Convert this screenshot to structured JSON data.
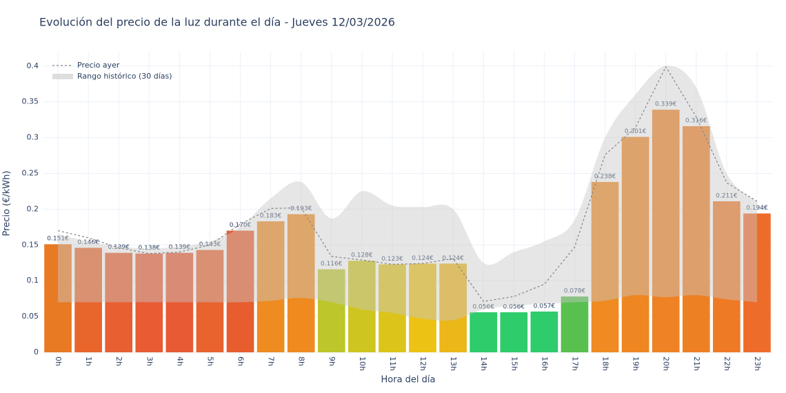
{
  "chart_data": {
    "type": "bar",
    "title": "Evolución del precio de la luz durante el día - Jueves 12/03/2026",
    "xlabel": "Hora del día",
    "ylabel": "Precio (€/kWh)",
    "categories": [
      "0h",
      "1h",
      "2h",
      "3h",
      "4h",
      "5h",
      "6h",
      "7h",
      "8h",
      "9h",
      "10h",
      "11h",
      "12h",
      "13h",
      "14h",
      "15h",
      "16h",
      "17h",
      "18h",
      "19h",
      "20h",
      "21h",
      "22h",
      "23h"
    ],
    "values": [
      0.151,
      0.146,
      0.139,
      0.138,
      0.139,
      0.143,
      0.17,
      0.183,
      0.193,
      0.116,
      0.128,
      0.123,
      0.124,
      0.124,
      0.056,
      0.056,
      0.057,
      0.078,
      0.238,
      0.301,
      0.339,
      0.316,
      0.211,
      0.194
    ],
    "value_labels": [
      "0.151€",
      "0.146€",
      "0.139€",
      "0.138€",
      "0.139€",
      "0.143€",
      "0.170€",
      "0.183€",
      "0.193€",
      "0.116€",
      "0.128€",
      "0.123€",
      "0.124€",
      "0.124€",
      "0.056€",
      "0.056€",
      "0.057€",
      "0.078€",
      "0.238€",
      "0.301€",
      "0.339€",
      "0.316€",
      "0.211€",
      "0.194€"
    ],
    "colors": [
      "#e97a24",
      "#e8652c",
      "#e85f31",
      "#e85b33",
      "#e85a33",
      "#e8632e",
      "#e85d2e",
      "#ee8b21",
      "#ef8a20",
      "#bdc62a",
      "#cfc520",
      "#dcc41a",
      "#ecc214",
      "#ebb719",
      "#2ecc6b",
      "#2ecc6b",
      "#2ecc6b",
      "#58c04f",
      "#ef8b22",
      "#ee8622",
      "#ee8224",
      "#ee8024",
      "#ef7a26",
      "#ee6c2a"
    ],
    "yesterday": {
      "name": "Precio ayer",
      "color": "#8a8a8a",
      "values": [
        0.17,
        0.16,
        0.146,
        0.138,
        0.14,
        0.15,
        0.179,
        0.201,
        0.202,
        0.134,
        0.129,
        0.123,
        0.124,
        0.131,
        0.071,
        0.078,
        0.095,
        0.147,
        0.276,
        0.314,
        0.399,
        0.329,
        0.237,
        0.211
      ]
    },
    "range": {
      "name": "Rango histórico (30 días)",
      "color": "#c8c8c8",
      "upper": [
        0.165,
        0.155,
        0.148,
        0.145,
        0.148,
        0.155,
        0.175,
        0.215,
        0.238,
        0.187,
        0.225,
        0.205,
        0.203,
        0.2,
        0.125,
        0.14,
        0.155,
        0.185,
        0.3,
        0.36,
        0.4,
        0.37,
        0.25,
        0.21
      ],
      "lower": [
        0.07,
        0.07,
        0.07,
        0.07,
        0.07,
        0.07,
        0.07,
        0.072,
        0.076,
        0.07,
        0.06,
        0.055,
        0.047,
        0.045,
        0.06,
        0.065,
        0.068,
        0.07,
        0.072,
        0.08,
        0.077,
        0.08,
        0.074,
        0.07
      ]
    },
    "ylim": [
      0,
      0.42
    ],
    "yticks": [
      0,
      0.05,
      0.1,
      0.15,
      0.2,
      0.25,
      0.3,
      0.35,
      0.4
    ],
    "grid": true,
    "legend": "top-left"
  }
}
